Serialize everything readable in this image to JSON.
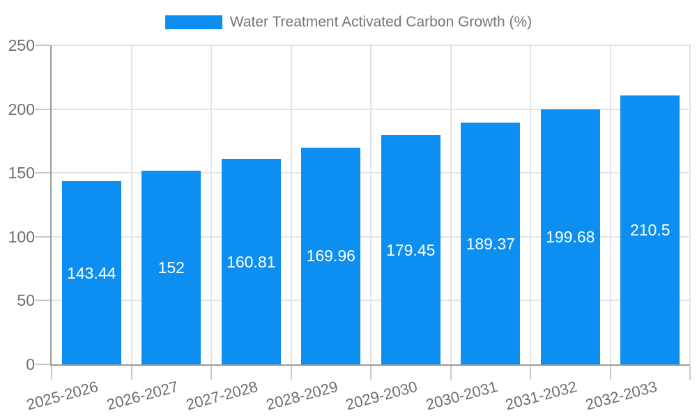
{
  "chart_data": {
    "type": "bar",
    "title": "Water Treatment Activated Carbon Growth (%)",
    "legend_position": "top",
    "legend": [
      "Water Treatment Activated Carbon Growth (%)"
    ],
    "categories": [
      "2025-2026",
      "2026-2027",
      "2027-2028",
      "2028-2029",
      "2029-2030",
      "2030-2031",
      "2031-2032",
      "2032-2033"
    ],
    "series": [
      {
        "name": "Water Treatment Activated Carbon Growth (%)",
        "values": [
          143.44,
          152,
          160.81,
          169.96,
          179.45,
          189.37,
          199.68,
          210.5
        ]
      }
    ],
    "value_labels": [
      "143.44",
      "152",
      "160.81",
      "169.96",
      "179.45",
      "189.37",
      "199.68",
      "210.5"
    ],
    "xlabel": "",
    "ylabel": "",
    "ylim": [
      0,
      250
    ],
    "yticks": [
      0,
      50,
      100,
      150,
      200,
      250
    ],
    "grid": true,
    "colors": {
      "bar": "#0d8ff2",
      "bar_label": "#ffffff",
      "grid": "#e4e4e4",
      "axis": "#9b9b9b",
      "tick": "#c9c9c9",
      "axis_text": "#6e6e6e",
      "legend_text": "#757575",
      "background": "#ffffff"
    }
  }
}
